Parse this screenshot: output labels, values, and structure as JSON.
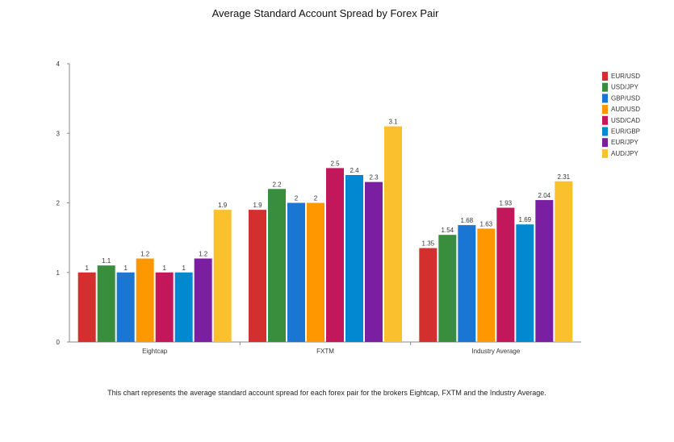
{
  "chart_data": {
    "type": "bar",
    "title": "Average Standard Account Spread by Forex Pair",
    "xlabel": "",
    "ylabel": "",
    "ylim": [
      0,
      4
    ],
    "yticks": [
      "0",
      "1",
      "2",
      "3",
      "4"
    ],
    "categories": [
      "Eightcap",
      "FXTM",
      "Industry Average"
    ],
    "grid": false,
    "legend_position": "right",
    "series": [
      {
        "name": "EUR/USD",
        "color": "#d32f2f",
        "values": [
          1,
          1.9,
          1.35
        ],
        "labels": [
          "1",
          "1.9",
          "1.35"
        ]
      },
      {
        "name": "USD/JPY",
        "color": "#388e3c",
        "values": [
          1.1,
          2.2,
          1.54
        ],
        "labels": [
          "1.1",
          "2.2",
          "1.54"
        ]
      },
      {
        "name": "GBP/USD",
        "color": "#1976d2",
        "values": [
          1,
          2,
          1.68
        ],
        "labels": [
          "1",
          "2",
          "1.68"
        ]
      },
      {
        "name": "AUD/USD",
        "color": "#ff9800",
        "values": [
          1.2,
          2,
          1.63
        ],
        "labels": [
          "1.2",
          "2",
          "1.63"
        ]
      },
      {
        "name": "USD/CAD",
        "color": "#c2185b",
        "values": [
          1,
          2.5,
          1.93
        ],
        "labels": [
          "1",
          "2.5",
          "1.93"
        ]
      },
      {
        "name": "EUR/GBP",
        "color": "#0288d1",
        "values": [
          1,
          2.4,
          1.69
        ],
        "labels": [
          "1",
          "2.4",
          "1.69"
        ]
      },
      {
        "name": "EUR/JPY",
        "color": "#7b1fa2",
        "values": [
          1.2,
          2.3,
          2.04
        ],
        "labels": [
          "1.2",
          "2.3",
          "2.04"
        ]
      },
      {
        "name": "AUD/JPY",
        "color": "#fbc02d",
        "values": [
          1.9,
          3.1,
          2.31
        ],
        "labels": [
          "1.9",
          "3.1",
          "2.31"
        ]
      }
    ]
  },
  "caption": "This chart represents the average standard account spread for each forex pair for the brokers Eightcap, FXTM and the Industry Average."
}
